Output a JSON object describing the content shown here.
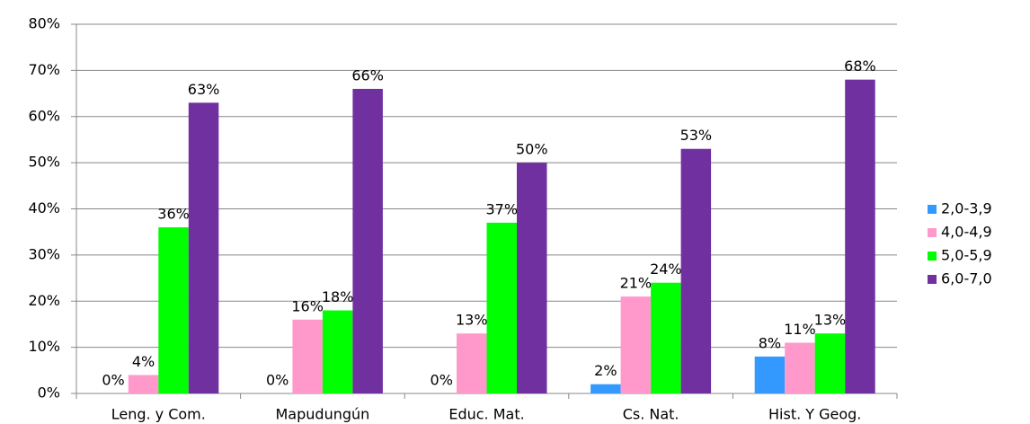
{
  "chart_data": {
    "type": "bar",
    "categories": [
      "Leng. y Com.",
      "Mapudungún",
      "Educ. Mat.",
      "Cs. Nat.",
      "Hist. Y Geog."
    ],
    "series": [
      {
        "name": "2,0-3,9",
        "color": "#3399ff",
        "values": [
          0,
          0,
          0,
          2,
          8
        ],
        "value_labels": [
          "0%",
          "0%",
          "0%",
          "2%",
          "8%"
        ]
      },
      {
        "name": "4,0-4,9",
        "color": "#ff99cc",
        "values": [
          4,
          16,
          13,
          21,
          11
        ],
        "value_labels": [
          "4%",
          "16%",
          "13%",
          "21%",
          "11%"
        ]
      },
      {
        "name": "5,0-5,9",
        "color": "#00ff00",
        "values": [
          36,
          18,
          37,
          24,
          13
        ],
        "value_labels": [
          "36%",
          "18%",
          "37%",
          "24%",
          "13%"
        ]
      },
      {
        "name": "6,0-7,0",
        "color": "#7030a0",
        "values": [
          63,
          66,
          50,
          53,
          68
        ],
        "value_labels": [
          "63%",
          "66%",
          "50%",
          "53%",
          "68%"
        ]
      }
    ],
    "ylim": [
      0,
      80
    ],
    "yticks": [
      {
        "value": 0,
        "label": "0%"
      },
      {
        "value": 10,
        "label": "10%"
      },
      {
        "value": 20,
        "label": "20%"
      },
      {
        "value": 30,
        "label": "30%"
      },
      {
        "value": 40,
        "label": "40%"
      },
      {
        "value": 50,
        "label": "50%"
      },
      {
        "value": 60,
        "label": "60%"
      },
      {
        "value": 70,
        "label": "70%"
      },
      {
        "value": 80,
        "label": "80%"
      }
    ],
    "grid": true,
    "legend": "right"
  }
}
